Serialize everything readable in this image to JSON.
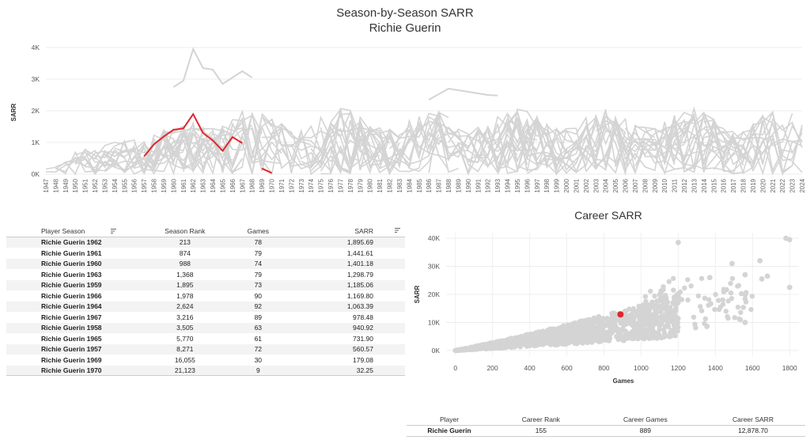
{
  "top_chart": {
    "title": "Season-by-Season SARR",
    "subtitle": "Richie Guerin",
    "ylabel": "SARR",
    "highlight_color": "#e0262d",
    "background_color": "#d4d4d4"
  },
  "chart_data": [
    {
      "type": "line",
      "title": "Season-by-Season SARR",
      "subtitle": "Richie Guerin",
      "xlabel": "",
      "ylabel": "SARR",
      "x_range": [
        1947,
        2024
      ],
      "ylim": [
        0,
        4000
      ],
      "yticks": [
        "0K",
        "1K",
        "2K",
        "3K",
        "4K"
      ],
      "grid": true,
      "series": [
        {
          "name": "Richie Guerin",
          "color": "#e0262d",
          "x": [
            1957,
            1958,
            1959,
            1960,
            1961,
            1962,
            1963,
            1964,
            1965,
            1966,
            1967
          ],
          "y": [
            560.57,
            940.92,
            1185.06,
            1401.18,
            1441.61,
            1895.69,
            1298.79,
            1063.39,
            731.9,
            1169.8,
            978.48
          ]
        },
        {
          "name": "Richie Guerin",
          "color": "#e0262d",
          "x": [
            1969,
            1970
          ],
          "y": [
            179.08,
            32.25
          ]
        }
      ]
    },
    {
      "type": "scatter",
      "title": "Career SARR",
      "xlabel": "Games",
      "ylabel": "SARR",
      "xlim": [
        -50,
        1850
      ],
      "ylim": [
        -2000,
        42000
      ],
      "xticks": [
        0,
        200,
        400,
        600,
        800,
        1000,
        1200,
        1400,
        1600,
        1800
      ],
      "yticks": [
        "0K",
        "10K",
        "20K",
        "30K",
        "40K"
      ],
      "grid": true,
      "highlight": {
        "name": "Richie Guerin",
        "x": 889,
        "y": 12878.7,
        "color": "#e0262d"
      },
      "notable_points": [
        {
          "x": 1780,
          "y": 40000
        },
        {
          "x": 1800,
          "y": 39500
        },
        {
          "x": 1200,
          "y": 38500
        },
        {
          "x": 1640,
          "y": 32000
        },
        {
          "x": 1490,
          "y": 31000
        },
        {
          "x": 1370,
          "y": 26000
        },
        {
          "x": 1560,
          "y": 27000
        },
        {
          "x": 1680,
          "y": 26500
        },
        {
          "x": 1800,
          "y": 22500
        },
        {
          "x": 1560,
          "y": 10000
        },
        {
          "x": 1650,
          "y": 25500
        }
      ]
    }
  ],
  "season_table": {
    "headers": {
      "player_season": "Player Season",
      "season_rank": "Season Rank",
      "games": "Games",
      "sarr": "SARR"
    },
    "rows": [
      {
        "player_season": "Richie Guerin 1962",
        "season_rank": "213",
        "games": "78",
        "sarr": "1,895.69"
      },
      {
        "player_season": "Richie Guerin 1961",
        "season_rank": "874",
        "games": "79",
        "sarr": "1,441.61"
      },
      {
        "player_season": "Richie Guerin 1960",
        "season_rank": "988",
        "games": "74",
        "sarr": "1,401.18"
      },
      {
        "player_season": "Richie Guerin 1963",
        "season_rank": "1,368",
        "games": "79",
        "sarr": "1,298.79"
      },
      {
        "player_season": "Richie Guerin 1959",
        "season_rank": "1,895",
        "games": "73",
        "sarr": "1,185.06"
      },
      {
        "player_season": "Richie Guerin 1966",
        "season_rank": "1,978",
        "games": "90",
        "sarr": "1,169.80"
      },
      {
        "player_season": "Richie Guerin 1964",
        "season_rank": "2,624",
        "games": "92",
        "sarr": "1,063.39"
      },
      {
        "player_season": "Richie Guerin 1967",
        "season_rank": "3,216",
        "games": "89",
        "sarr": "978.48"
      },
      {
        "player_season": "Richie Guerin 1958",
        "season_rank": "3,505",
        "games": "63",
        "sarr": "940.92"
      },
      {
        "player_season": "Richie Guerin 1965",
        "season_rank": "5,770",
        "games": "61",
        "sarr": "731.90"
      },
      {
        "player_season": "Richie Guerin 1957",
        "season_rank": "8,271",
        "games": "72",
        "sarr": "560.57"
      },
      {
        "player_season": "Richie Guerin 1969",
        "season_rank": "16,055",
        "games": "30",
        "sarr": "179.08"
      },
      {
        "player_season": "Richie Guerin 1970",
        "season_rank": "21,123",
        "games": "9",
        "sarr": "32.25"
      }
    ]
  },
  "career_chart": {
    "title": "Career SARR",
    "xlabel": "Games",
    "ylabel": "SARR"
  },
  "career_table": {
    "headers": {
      "player": "Player",
      "career_rank": "Career Rank",
      "career_games": "Career Games",
      "career_sarr": "Career SARR"
    },
    "row": {
      "player": "Richie Guerin",
      "career_rank": "155",
      "career_games": "889",
      "career_sarr": "12,878.70"
    }
  }
}
